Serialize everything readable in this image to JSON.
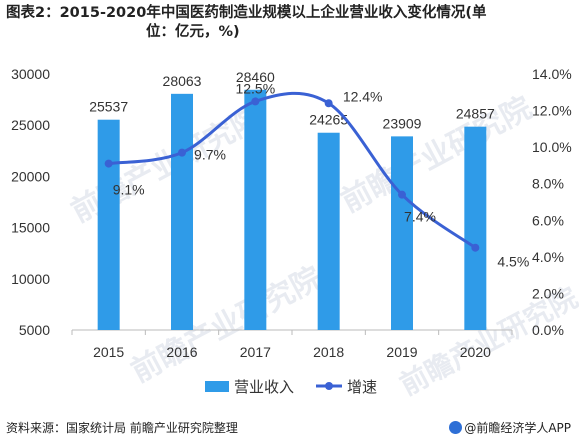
{
  "title_line1": "图表2：2015-2020年中国医药制造业规模以上企业营业收入变化情况(单",
  "title_line2": "位：亿元，%)",
  "watermark_text": "前瞻产业研究院",
  "footer": {
    "source": "资料来源：国家统计局 前瞻产业研究院整理",
    "brand": "@前瞻经济学人APP"
  },
  "colors": {
    "bar": "#2f9be8",
    "line": "#3a61d4",
    "text": "#333333",
    "axis": "#bbbbbb"
  },
  "chart_data": {
    "type": "bar+line",
    "categories": [
      "2015",
      "2016",
      "2017",
      "2018",
      "2019",
      "2020"
    ],
    "series": [
      {
        "name": "营业收入",
        "type": "bar",
        "axis": "left",
        "values": [
          25537,
          28063,
          28460,
          24265,
          23909,
          24857
        ],
        "labels": [
          "25537",
          "28063",
          "28460",
          "24265",
          "23909",
          "24857"
        ]
      },
      {
        "name": "增速",
        "type": "line",
        "axis": "right",
        "values": [
          9.1,
          9.7,
          12.5,
          12.4,
          7.4,
          4.5
        ],
        "labels": [
          "9.1%",
          "9.7%",
          "12.5%",
          "12.4%",
          "7.4%",
          "4.5%"
        ]
      }
    ],
    "y_left": {
      "min": 5000,
      "max": 30000,
      "ticks": [
        "5000",
        "10000",
        "15000",
        "20000",
        "25000",
        "30000"
      ]
    },
    "y_right": {
      "min": 0,
      "max": 14,
      "ticks": [
        "0.0%",
        "2.0%",
        "4.0%",
        "6.0%",
        "8.0%",
        "10.0%",
        "12.0%",
        "14.0%"
      ]
    },
    "legend": {
      "position": "bottom"
    },
    "grid": false
  }
}
